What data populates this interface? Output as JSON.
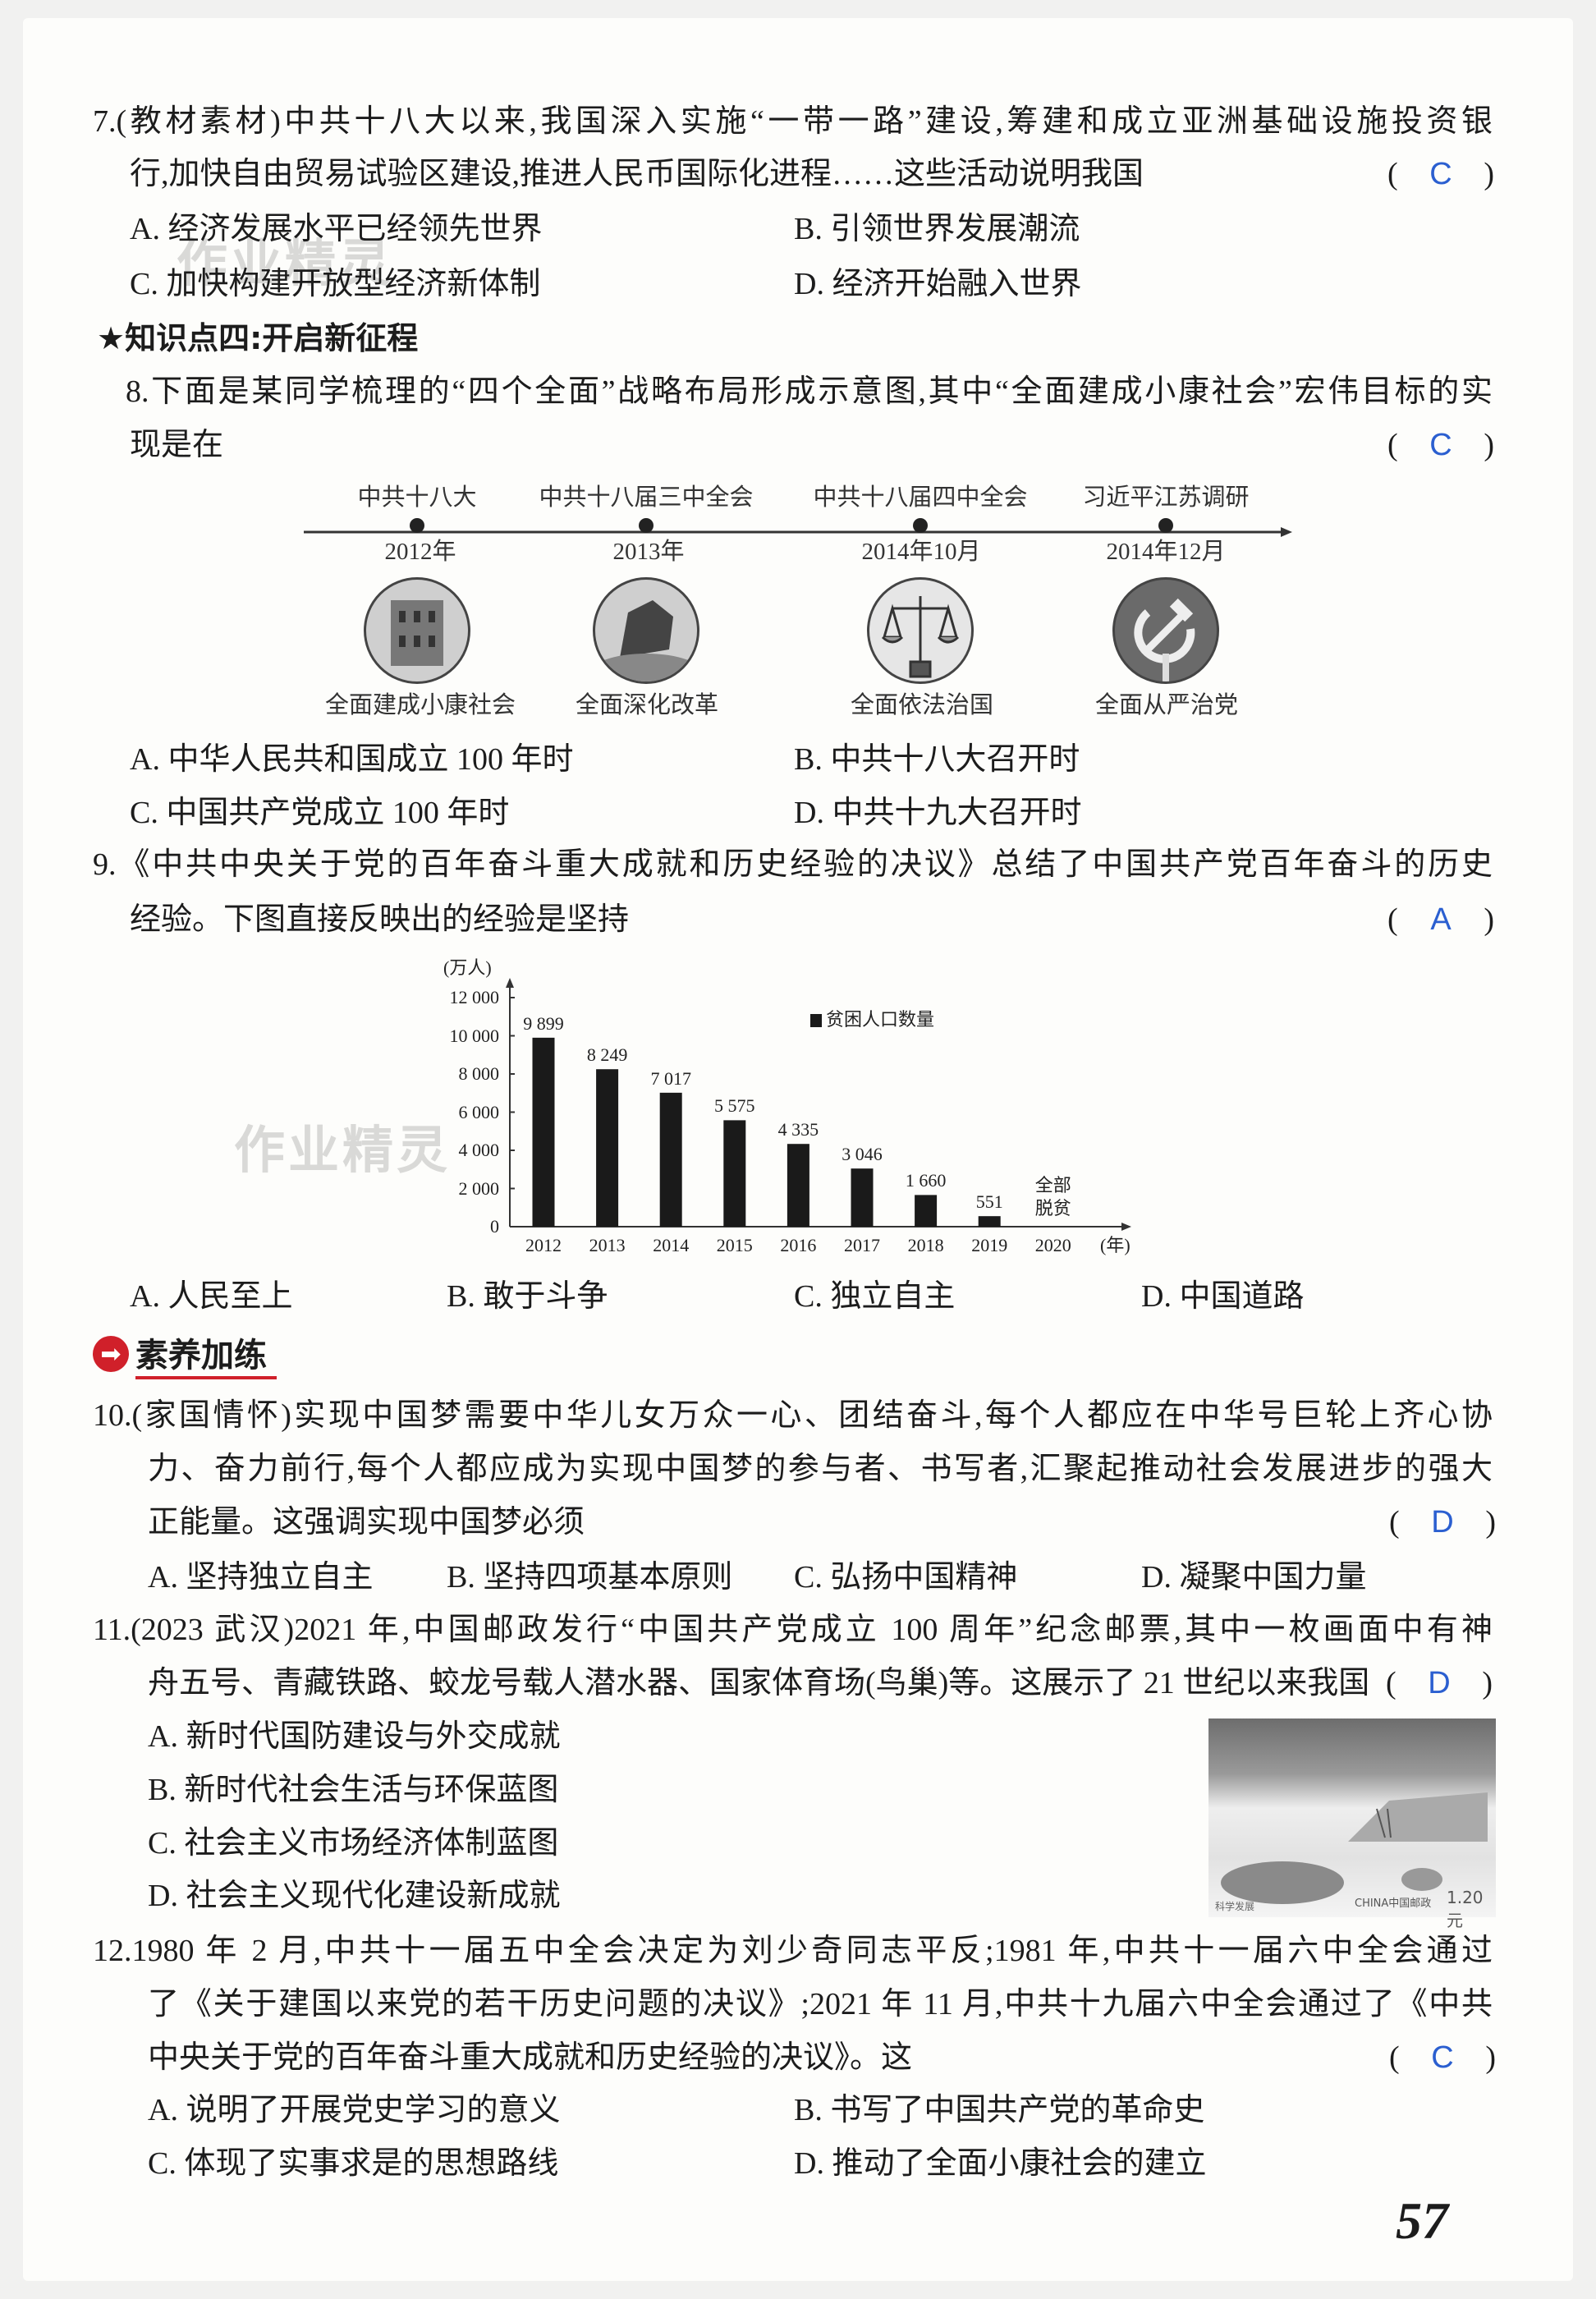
{
  "watermark": "作业精灵",
  "q7": {
    "line1": "7.(教材素材)中共十八大以来,我国深入实施“一带一路”建设,筹建和成立亚洲基础设施投资银",
    "line2": "行,加快自由贸易试验区建设,推进人民币国际化进程……这些活动说明我国",
    "answer": "C",
    "options": [
      "A. 经济发展水平已经领先世界",
      "B. 引领世界发展潮流",
      "C. 加快构建开放型经济新体制",
      "D. 经济开始融入世界"
    ]
  },
  "heading4": "★知识点四:开启新征程",
  "q8": {
    "line1": "8.下面是某同学梳理的“四个全面”战略布局形成示意图,其中“全面建成小康社会”宏伟目标的实",
    "line2": "现是在",
    "answer": "C",
    "timeline": [
      {
        "event": "中共十八大",
        "date": "2012年",
        "caption": "全面建成小康社会",
        "icon": "house-icon"
      },
      {
        "event": "中共十八届三中全会",
        "date": "2013年",
        "caption": "全面深化改革",
        "icon": "buildings-icon"
      },
      {
        "event": "中共十八届四中全会",
        "date": "2014年10月",
        "caption": "全面依法治国",
        "icon": "scales-icon"
      },
      {
        "event": "习近平江苏调研",
        "date": "2014年12月",
        "caption": "全面从严治党",
        "icon": "hammer-sickle-icon"
      }
    ],
    "options": [
      "A. 中华人民共和国成立 100 年时",
      "B. 中共十八大召开时",
      "C. 中国共产党成立 100 年时",
      "D. 中共十九大召开时"
    ]
  },
  "q9": {
    "line1": "9.《中共中央关于党的百年奋斗重大成就和历史经验的决议》总结了中国共产党百年奋斗的历史",
    "line2": "经验。下图直接反映出的经验是坚持",
    "answer": "A",
    "options": [
      "A. 人民至上",
      "B. 敢于斗争",
      "C. 独立自主",
      "D. 中国道路"
    ]
  },
  "chart_data": {
    "type": "bar",
    "title": "",
    "ylabel": "(万人)",
    "xlabel": "(年)",
    "ylim": [
      0,
      12000
    ],
    "yticks": [
      "0",
      "2 000",
      "4 000",
      "6 000",
      "8 000",
      "10 000",
      "12 000"
    ],
    "categories": [
      "2012",
      "2013",
      "2014",
      "2015",
      "2016",
      "2017",
      "2018",
      "2019",
      "2020"
    ],
    "series": [
      {
        "name": "贫困人口数量",
        "values": [
          9899,
          8249,
          7017,
          5575,
          4335,
          3046,
          1660,
          551,
          0
        ],
        "labels": [
          "9 899",
          "8 249",
          "7 017",
          "5 575",
          "4 335",
          "3 046",
          "1 660",
          "551",
          "全部\n脱贫"
        ]
      }
    ],
    "annotation_2020": [
      "全部",
      "脱贫"
    ],
    "legend": "top-right",
    "grid": false,
    "bar_color": "#1a1a1a"
  },
  "section": {
    "icon": "arrow-right-icon",
    "label": "素养加练",
    "color": "#d0202a"
  },
  "q10": {
    "line1": "10.(家国情怀)实现中国梦需要中华儿女万众一心、团结奋斗,每个人都应在中华号巨轮上齐心协",
    "line2": "力、奋力前行,每个人都应成为实现中国梦的参与者、书写者,汇聚起推动社会发展进步的强大",
    "line3": "正能量。这强调实现中国梦必须",
    "answer": "D",
    "options": [
      "A. 坚持独立自主",
      "B. 坚持四项基本原则",
      "C. 弘扬中国精神",
      "D. 凝聚中国力量"
    ]
  },
  "q11": {
    "line1": "11.(2023 武汉)2021 年,中国邮政发行“中国共产党成立 100 周年”纪念邮票,其中一枚画面中有神",
    "line2": "舟五号、青藏铁路、蛟龙号载人潜水器、国家体育场(鸟巢)等。这展示了 21 世纪以来我国",
    "answer": "D",
    "options": [
      "A. 新时代国防建设与外交成就",
      "B. 新时代社会生活与环保蓝图",
      "C. 社会主义市场经济体制蓝图",
      "D. 社会主义现代化建设新成就"
    ],
    "stamp": {
      "caption": "科学发展",
      "country": "CHINA中国邮政",
      "value": "1.20元"
    }
  },
  "q12": {
    "line1": "12.1980 年 2 月,中共十一届五中全会决定为刘少奇同志平反;1981 年,中共十一届六中全会通过",
    "line2": "了《关于建国以来党的若干历史问题的决议》;2021 年 11 月,中共十九届六中全会通过了《中共",
    "line3": "中央关于党的百年奋斗重大成就和历史经验的决议》。这",
    "answer": "C",
    "options": [
      "A. 说明了开展党史学习的意义",
      "B. 书写了中国共产党的革命史",
      "C. 体现了实事求是的思想路线",
      "D. 推动了全面小康社会的建立"
    ]
  },
  "paren_open": "(",
  "paren_close": ")",
  "page_number": "57"
}
